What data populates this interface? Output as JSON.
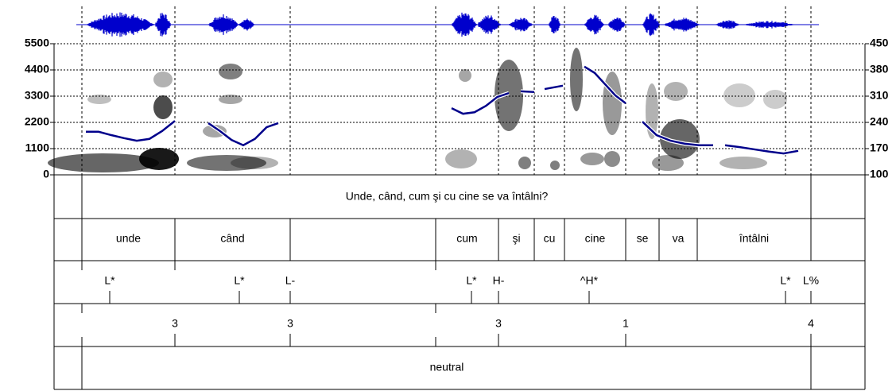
{
  "axes": {
    "left": {
      "lim": [
        0,
        5500
      ],
      "ticks": [
        0,
        1100,
        2200,
        3300,
        4400,
        5500
      ]
    },
    "right": {
      "lim": [
        100,
        450
      ],
      "ticks": [
        100,
        170,
        240,
        310,
        380,
        450
      ]
    }
  },
  "pitch_segments": [
    [
      215,
      215,
      206,
      198,
      191,
      196,
      217,
      244
    ],
    [
      238,
      217,
      193,
      179,
      196,
      227,
      238
    ],
    [
      278,
      263,
      267,
      284,
      308,
      318
    ],
    [
      323,
      321
    ],
    [
      329,
      338
    ],
    [
      389,
      372,
      342,
      312,
      291
    ],
    [
      242,
      206,
      191,
      183,
      179,
      179
    ],
    [
      179,
      174,
      168,
      162,
      157,
      164
    ]
  ],
  "tiers": {
    "sentence": "Unde, când, cum şi cu cine se va întâlni?",
    "words": [
      "unde",
      "când",
      "cum",
      "şi",
      "cu",
      "cine",
      "se",
      "va",
      "întâlni"
    ],
    "tones": [
      "L*",
      "L*",
      "L-",
      "L*",
      "H-",
      "^H*",
      "L*",
      "L%"
    ],
    "breaks": [
      "3",
      "3",
      "3",
      "1",
      "4"
    ],
    "mode": "neutral"
  }
}
